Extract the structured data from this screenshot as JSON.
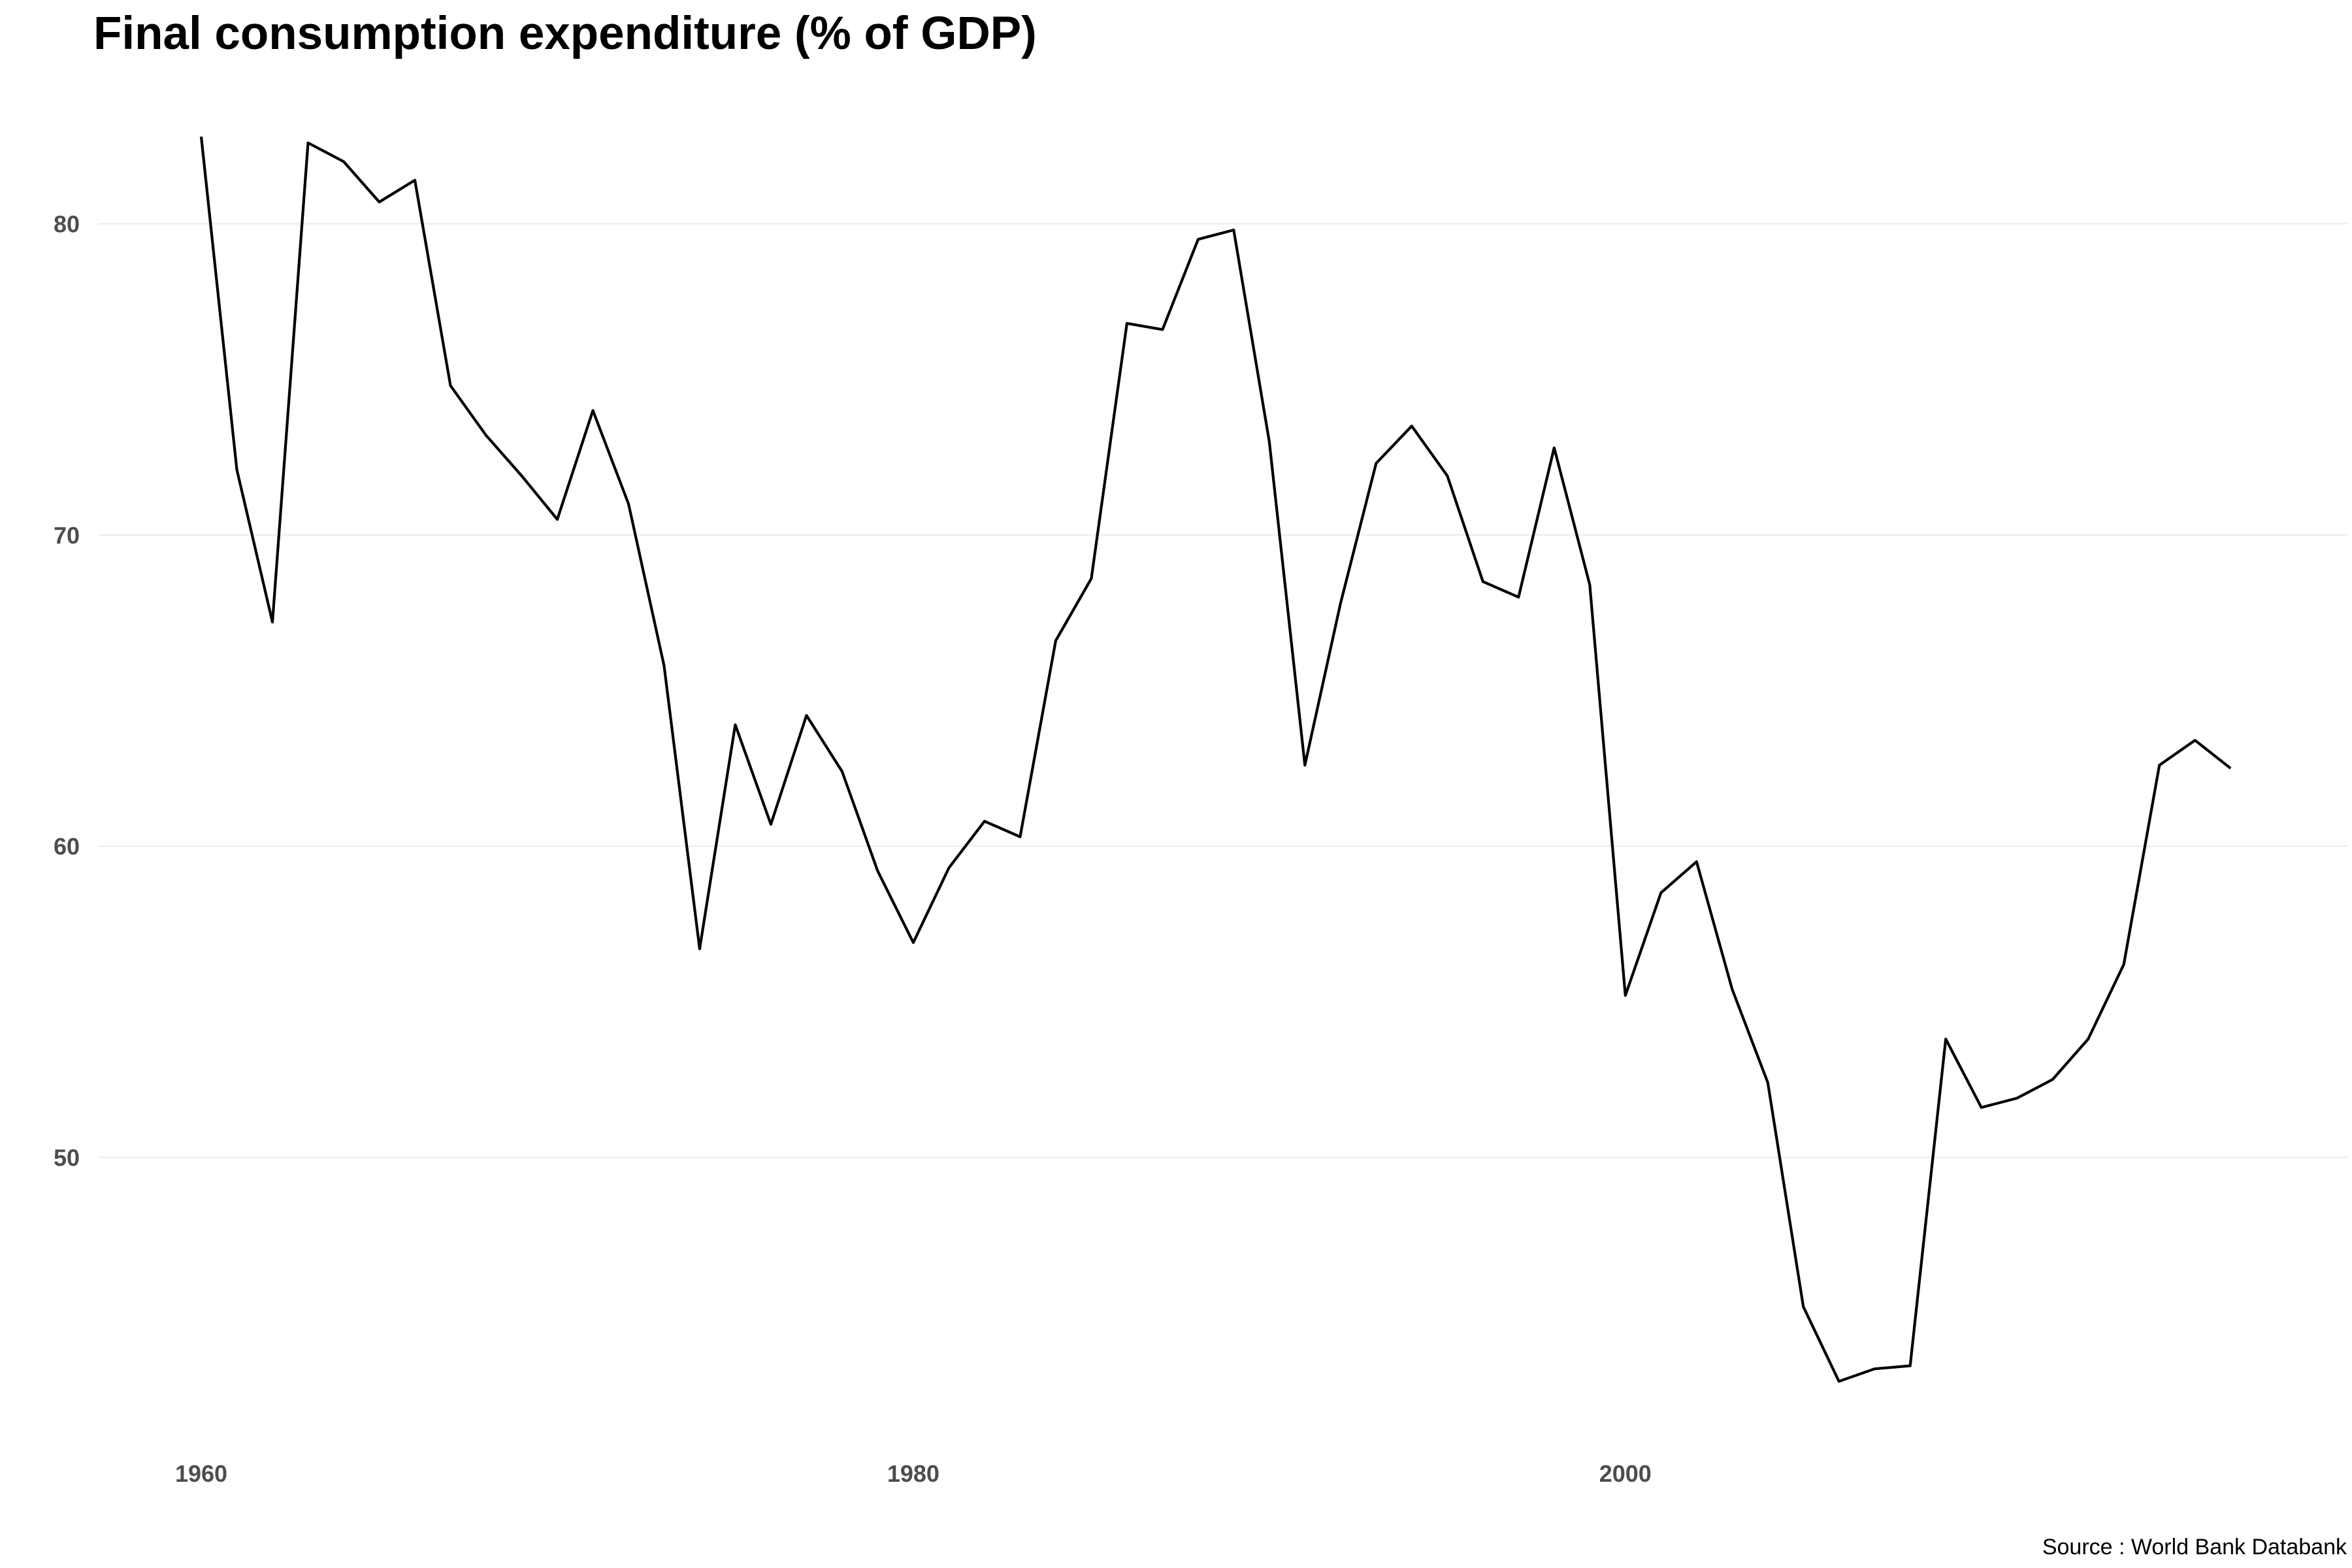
{
  "chart_data": {
    "type": "line",
    "title": "Final consumption expenditure (% of GDP)",
    "caption": "Source : World Bank Databank",
    "xlabel": "",
    "ylabel": "",
    "x": [
      1960,
      1961,
      1962,
      1963,
      1964,
      1965,
      1966,
      1967,
      1968,
      1969,
      1970,
      1971,
      1972,
      1973,
      1974,
      1975,
      1976,
      1977,
      1978,
      1979,
      1980,
      1981,
      1982,
      1983,
      1984,
      1985,
      1986,
      1987,
      1988,
      1989,
      1990,
      1991,
      1992,
      1993,
      1994,
      1995,
      1996,
      1997,
      1998,
      1999,
      2000,
      2001,
      2002,
      2003,
      2004,
      2005,
      2006,
      2007,
      2008,
      2009,
      2010,
      2011,
      2012,
      2013,
      2014,
      2015,
      2016,
      2017
    ],
    "series": [
      {
        "values": [
          82.8,
          72.1,
          67.2,
          82.6,
          82.0,
          80.7,
          81.4,
          74.8,
          73.2,
          71.9,
          70.5,
          74.0,
          71.0,
          65.8,
          56.7,
          63.9,
          60.7,
          64.2,
          62.4,
          59.2,
          56.9,
          59.3,
          60.8,
          60.3,
          66.6,
          68.6,
          76.8,
          76.6,
          79.5,
          79.8,
          73.0,
          62.6,
          67.8,
          72.3,
          73.5,
          71.9,
          68.5,
          68.0,
          72.8,
          68.4,
          55.2,
          58.5,
          59.5,
          55.4,
          52.4,
          45.2,
          42.8,
          43.2,
          43.3,
          53.8,
          51.6,
          51.9,
          52.5,
          53.8,
          56.2,
          62.6,
          63.4,
          62.5
        ]
      }
    ],
    "xticks": [
      1960,
      1980,
      2000
    ],
    "yticks": [
      50,
      60,
      70,
      80
    ],
    "xlim": [
      1957.1,
      2020.3
    ],
    "ylim": [
      41.0,
      84.0
    ],
    "grid": "horizontal-major",
    "legend": "none",
    "colors": {
      "line": "#000000",
      "grid": "#ebebeb",
      "tick_text": "#4d4d4d",
      "background": "#ffffff"
    }
  }
}
